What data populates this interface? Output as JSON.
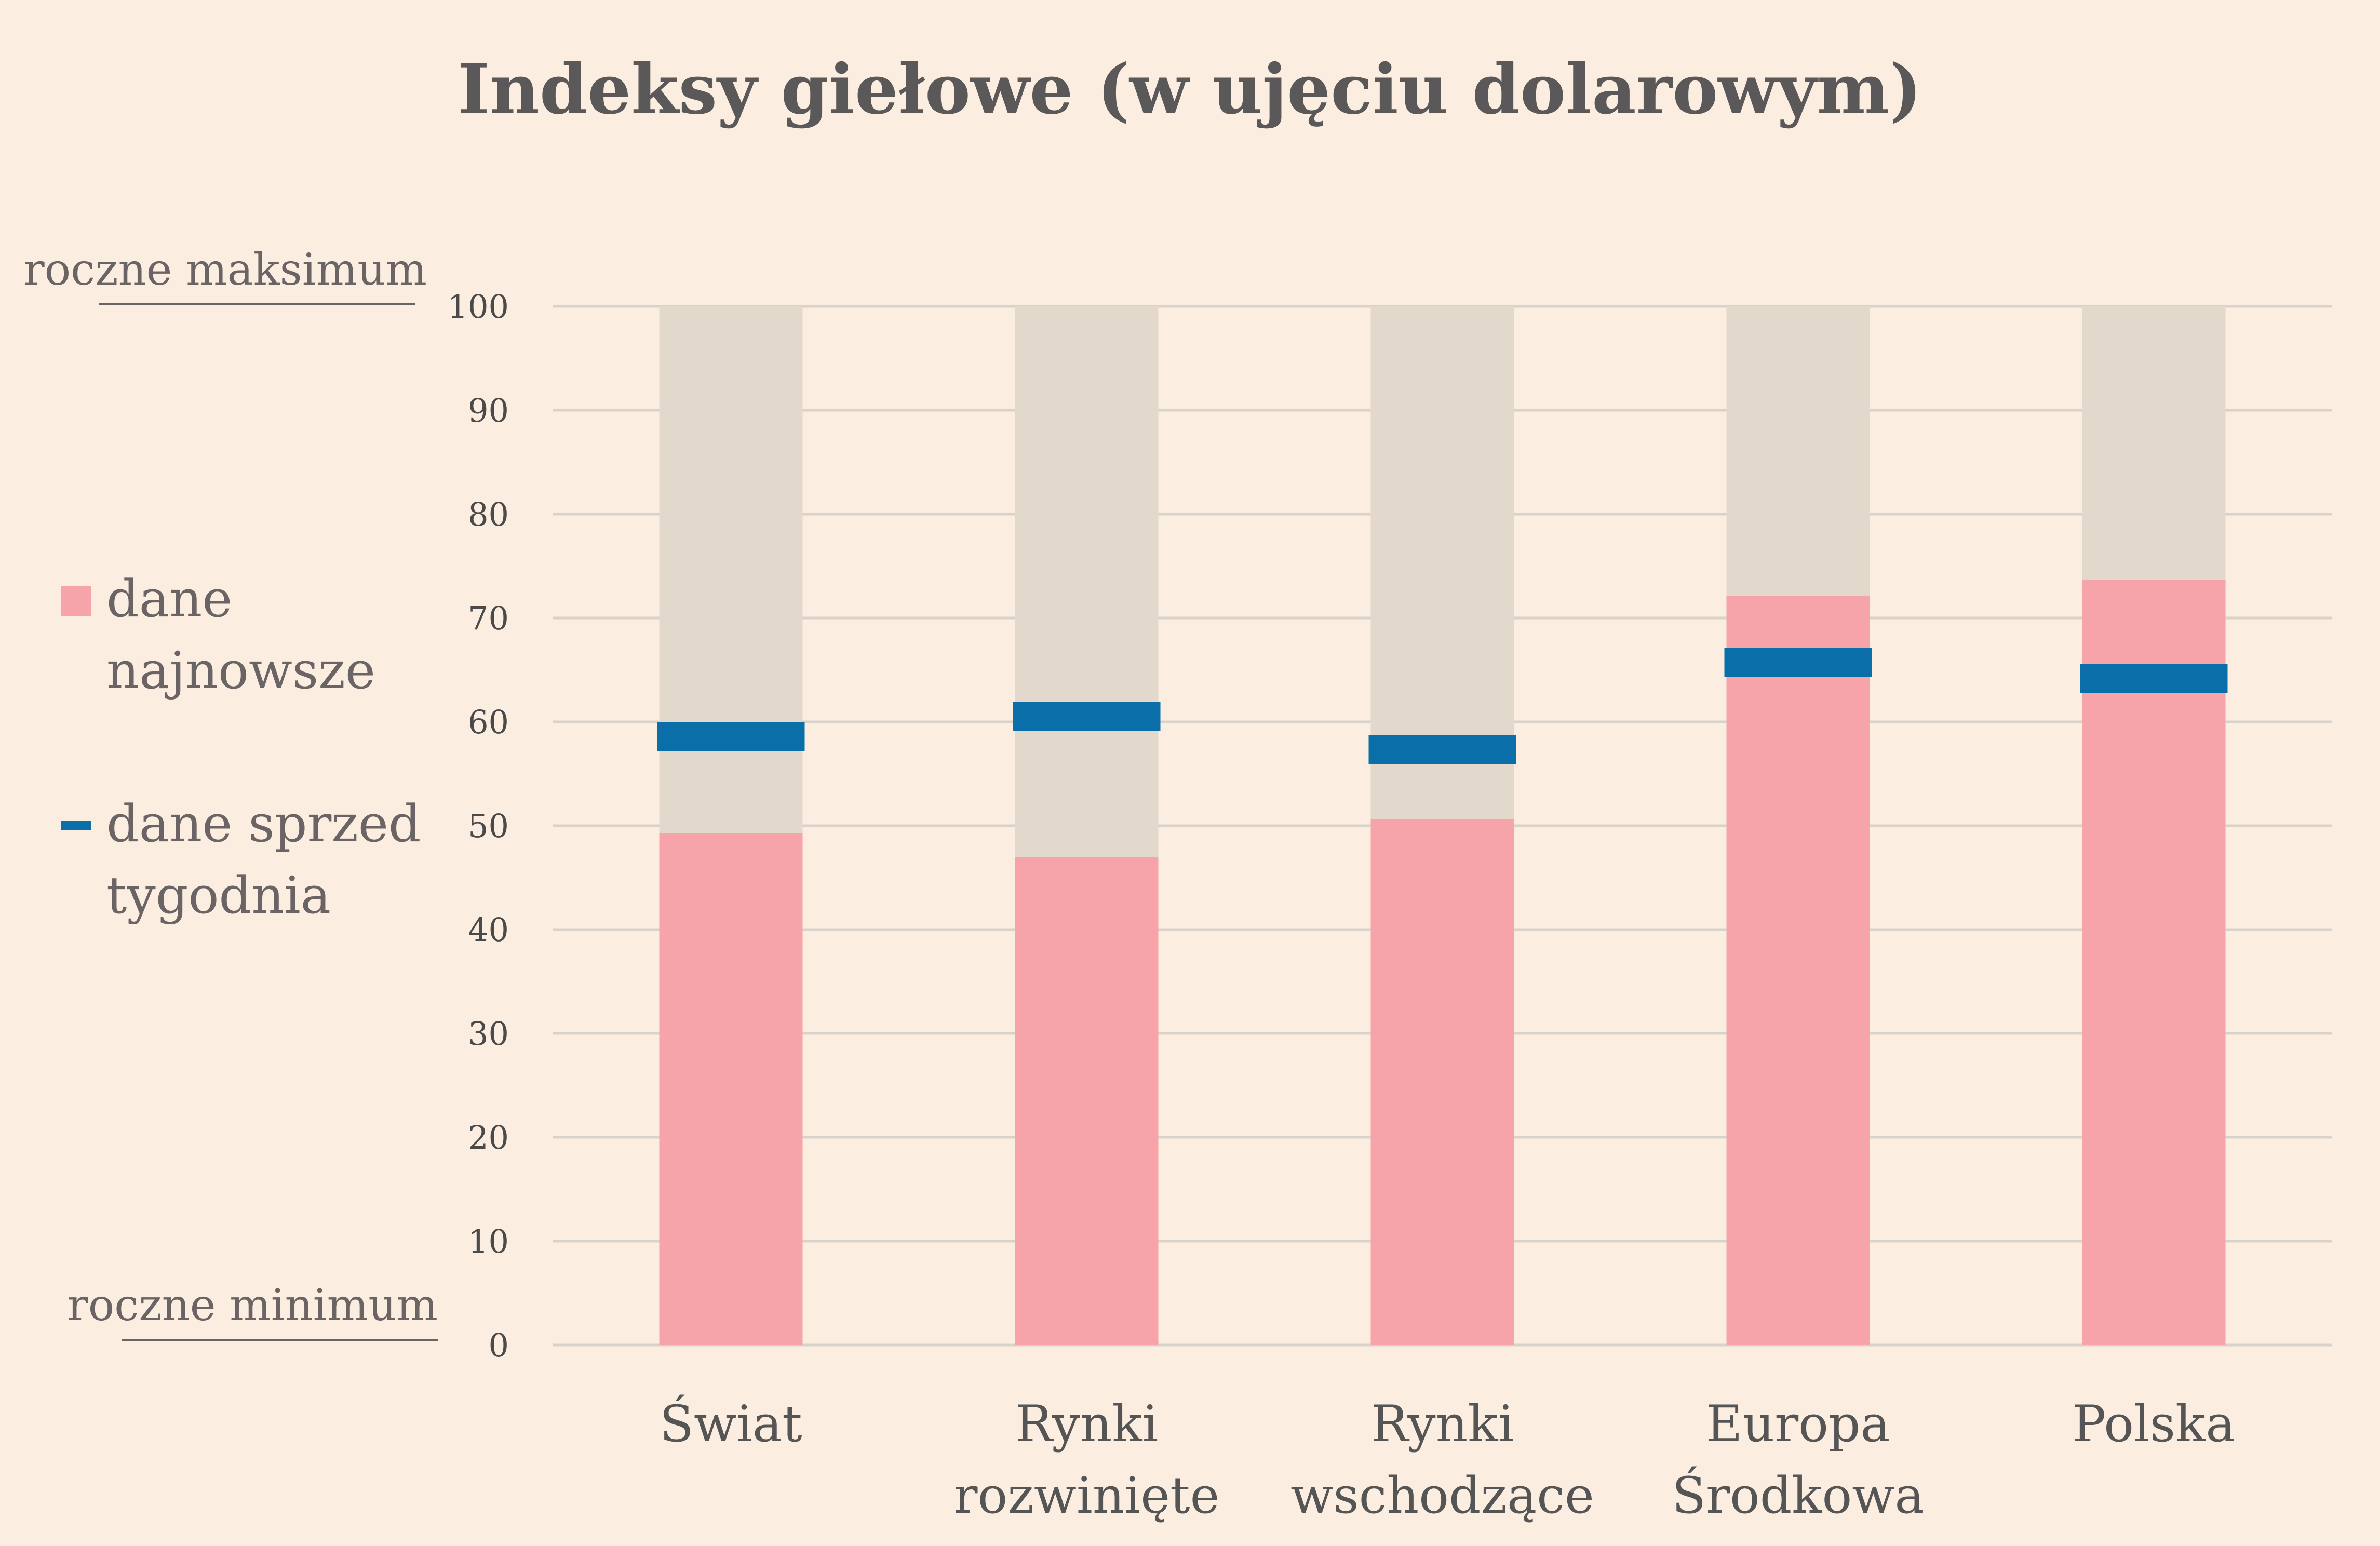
{
  "chart_data": {
    "type": "bar",
    "title": "Indeksy giełowe (w ujęciu dolarowym)",
    "top_label": "roczne maksimum",
    "bottom_label": "roczne minimum",
    "ylim": [
      0,
      100
    ],
    "yticks": [
      0,
      10,
      20,
      30,
      40,
      50,
      60,
      70,
      80,
      90,
      100
    ],
    "grid": true,
    "categories": [
      [
        "Świat"
      ],
      [
        "Rynki",
        "rozwinięte"
      ],
      [
        "Rynki",
        "wschodzące"
      ],
      [
        "Europa",
        "Środkowa"
      ],
      [
        "Polska"
      ]
    ],
    "series": [
      {
        "name": "dane najnowsze",
        "legend_lines": [
          "dane",
          "najnowsze"
        ],
        "values": [
          49.3,
          47.0,
          50.6,
          72.1,
          73.7
        ]
      },
      {
        "name": "dane sprzed tygodnia",
        "legend_lines": [
          "dane sprzed",
          "tygodnia"
        ],
        "values": [
          58.6,
          60.5,
          57.3,
          65.7,
          64.2
        ]
      }
    ],
    "range_background": 100,
    "legend_position": "left",
    "colors": {
      "background": "#fbede0",
      "range": "#e3d8cc",
      "latest": "#f6a4aa",
      "previous": "#0a6ea8",
      "grid": "#d8d2cc",
      "text": "#5a5858"
    }
  }
}
